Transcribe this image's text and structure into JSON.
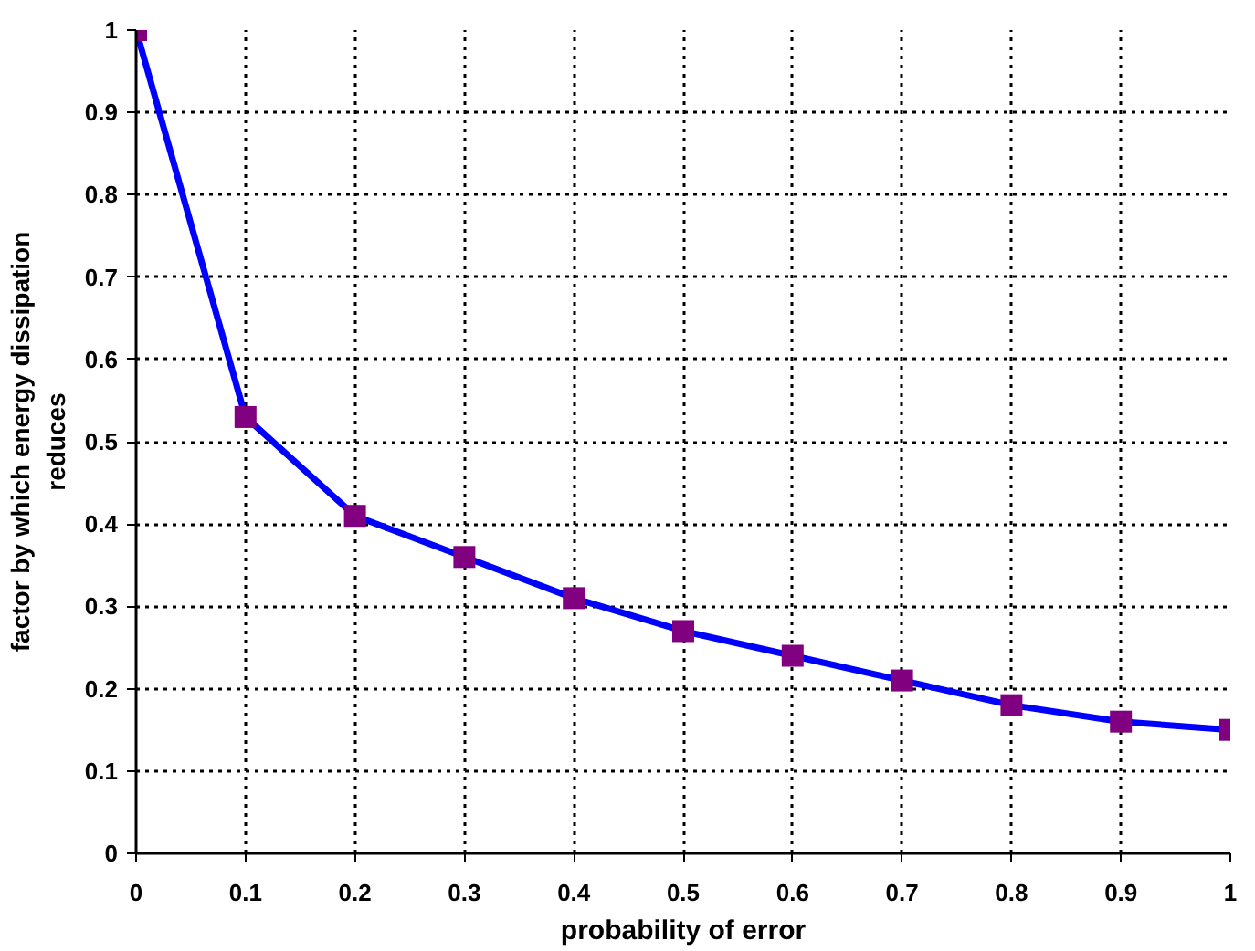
{
  "chart_data": {
    "type": "line",
    "xlabel": "probability of error",
    "ylabel": "factor by which energy dissipation reduces",
    "x": [
      0,
      0.1,
      0.2,
      0.3,
      0.4,
      0.5,
      0.6,
      0.7,
      0.8,
      0.9,
      1
    ],
    "series": [
      {
        "color": "#0000ff",
        "colors": [
          "#800080",
          "#800080",
          "#800080",
          "#800080",
          "#800080",
          "#800080",
          "#800080",
          "#800080",
          "#800080",
          "#800080",
          "#800080"
        ],
        "values": [
          1,
          0.53,
          0.41,
          0.36,
          0.31,
          0.27,
          0.24,
          0.21,
          0.18,
          0.16,
          0.15
        ]
      }
    ],
    "xlim": [
      0,
      1
    ],
    "ylim": [
      0,
      1
    ],
    "xticks": [
      0,
      0.1,
      0.2,
      0.3,
      0.4,
      0.5,
      0.6,
      0.7,
      0.8,
      0.9,
      1
    ],
    "yticks": [
      0,
      0.1,
      0.2,
      0.3,
      0.4,
      0.5,
      0.6,
      0.7,
      0.8,
      0.9,
      1
    ],
    "grid": true,
    "marker": "square",
    "line_style": "solid"
  }
}
